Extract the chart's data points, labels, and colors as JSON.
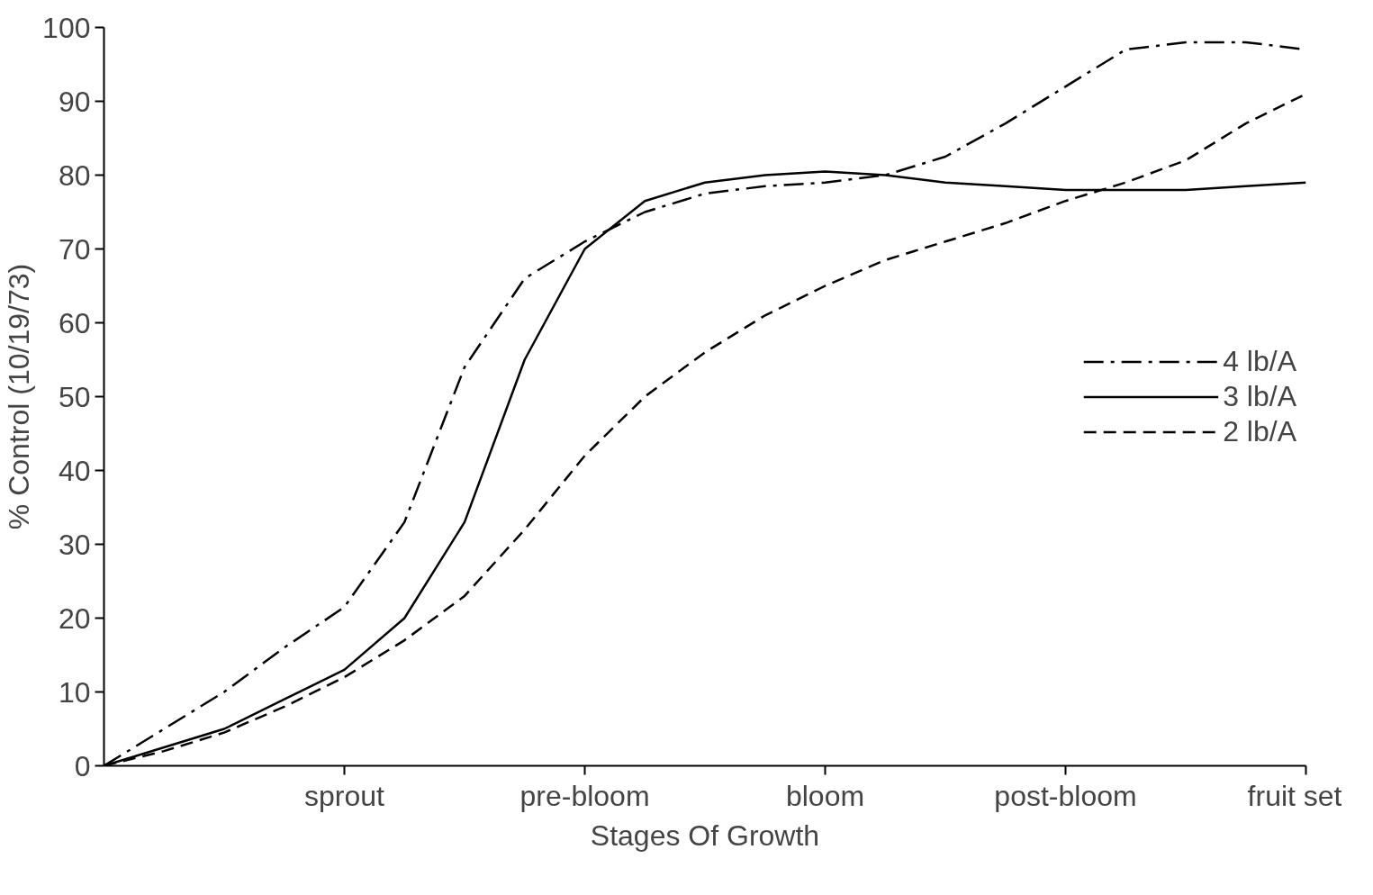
{
  "chart_data": {
    "type": "line",
    "xlabel": "Stages Of Growth",
    "ylabel": "% Control (10/19/73)",
    "categories": [
      null,
      null,
      null,
      null,
      "sprout",
      null,
      null,
      null,
      "pre-bloom",
      null,
      null,
      null,
      "bloom",
      null,
      null,
      null,
      "post-bloom",
      null,
      null,
      null,
      "fruit set"
    ],
    "ylim": [
      0,
      100
    ],
    "yticks": [
      0,
      10,
      20,
      30,
      40,
      50,
      60,
      70,
      80,
      90,
      100
    ],
    "legend": "right",
    "series": [
      {
        "name": "4 lb/A",
        "color": "#000000",
        "line_style": "dashdot",
        "values": [
          0,
          5,
          10,
          16,
          21.5,
          33,
          54,
          66,
          71,
          75,
          77.5,
          78.5,
          79,
          80,
          82.5,
          87,
          92,
          97,
          98,
          98,
          97
        ]
      },
      {
        "name": "3 lb/A",
        "color": "#000000",
        "line_style": "solid",
        "values": [
          0,
          2.5,
          5,
          9,
          13,
          20,
          33,
          55,
          70,
          76.5,
          79,
          80,
          80.5,
          80,
          79,
          78.5,
          78,
          78,
          78,
          78.5,
          79
        ]
      },
      {
        "name": "2 lb/A",
        "color": "#000000",
        "line_style": "dashed",
        "values": [
          0,
          2,
          4.5,
          8,
          12,
          17,
          23,
          32,
          42,
          50,
          56,
          61,
          65,
          68.5,
          71,
          73.5,
          76.5,
          79,
          82,
          87,
          91
        ]
      }
    ]
  }
}
